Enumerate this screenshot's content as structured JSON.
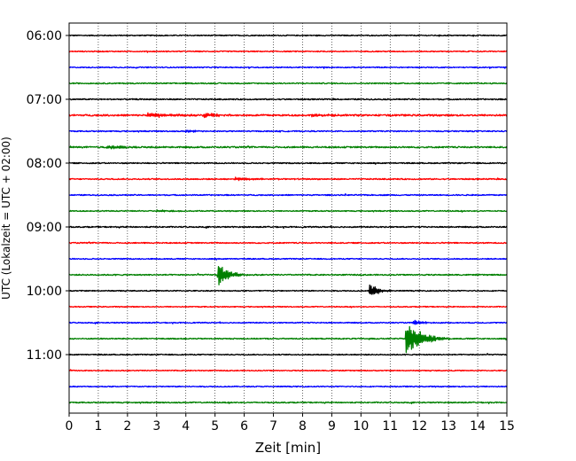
{
  "chart_data": {
    "type": "line",
    "title": "",
    "xlabel": "Zeit  [min]",
    "ylabel": "UTC (Lokalzeit = UTC + 02:00)",
    "xlim": [
      0,
      15
    ],
    "x_ticks": [
      "0",
      "1",
      "2",
      "3",
      "4",
      "5",
      "6",
      "7",
      "8",
      "9",
      "10",
      "11",
      "12",
      "13",
      "14",
      "15"
    ],
    "y_ticks": [
      {
        "label": "06:00",
        "trace": 0
      },
      {
        "label": "07:00",
        "trace": 4
      },
      {
        "label": "08:00",
        "trace": 8
      },
      {
        "label": "09:00",
        "trace": 12
      },
      {
        "label": "10:00",
        "trace": 16
      },
      {
        "label": "11:00",
        "trace": 20
      }
    ],
    "grid": "vertical-dotted",
    "trace_interval_min": 15,
    "color_cycle": [
      "#000000",
      "#ff0000",
      "#0000ff",
      "#008000"
    ],
    "traces": [
      {
        "start": "06:00",
        "color": "#000000",
        "noise": 0.55,
        "events": []
      },
      {
        "start": "06:15",
        "color": "#ff0000",
        "noise": 0.55,
        "events": []
      },
      {
        "start": "06:30",
        "color": "#0000ff",
        "noise": 0.55,
        "events": []
      },
      {
        "start": "06:45",
        "color": "#008000",
        "noise": 0.6,
        "events": []
      },
      {
        "start": "07:00",
        "color": "#000000",
        "noise": 0.65,
        "events": []
      },
      {
        "start": "07:15",
        "color": "#ff0000",
        "noise": 0.9,
        "events": [
          {
            "t": 2.7,
            "amp": 2.5,
            "dur": 0.9
          },
          {
            "t": 4.6,
            "amp": 2.5,
            "dur": 0.5
          },
          {
            "t": 8.3,
            "amp": 1.2,
            "dur": 1.0
          }
        ]
      },
      {
        "start": "07:30",
        "color": "#0000ff",
        "noise": 0.6,
        "events": [
          {
            "t": 4.0,
            "amp": 1.5,
            "dur": 0.3
          }
        ]
      },
      {
        "start": "07:45",
        "color": "#008000",
        "noise": 0.8,
        "events": [
          {
            "t": 1.3,
            "amp": 2.2,
            "dur": 0.7
          }
        ]
      },
      {
        "start": "08:00",
        "color": "#000000",
        "noise": 0.6,
        "events": []
      },
      {
        "start": "08:15",
        "color": "#ff0000",
        "noise": 0.65,
        "events": [
          {
            "t": 5.7,
            "amp": 1.6,
            "dur": 0.9
          }
        ]
      },
      {
        "start": "08:30",
        "color": "#0000ff",
        "noise": 0.6,
        "events": []
      },
      {
        "start": "08:45",
        "color": "#008000",
        "noise": 0.55,
        "events": [
          {
            "t": 3.0,
            "amp": 1.0,
            "dur": 0.8
          }
        ]
      },
      {
        "start": "09:00",
        "color": "#000000",
        "noise": 0.65,
        "events": []
      },
      {
        "start": "09:15",
        "color": "#ff0000",
        "noise": 0.6,
        "events": []
      },
      {
        "start": "09:30",
        "color": "#0000ff",
        "noise": 0.55,
        "events": []
      },
      {
        "start": "09:45",
        "color": "#008000",
        "noise": 0.65,
        "events": [
          {
            "t": 5.1,
            "amp": 14,
            "dur": 0.35
          }
        ]
      },
      {
        "start": "10:00",
        "color": "#000000",
        "noise": 0.55,
        "events": [
          {
            "t": 10.3,
            "amp": 10,
            "dur": 0.25
          }
        ]
      },
      {
        "start": "10:15",
        "color": "#ff0000",
        "noise": 0.5,
        "events": []
      },
      {
        "start": "10:30",
        "color": "#0000ff",
        "noise": 0.55,
        "events": [
          {
            "t": 11.8,
            "amp": 3.0,
            "dur": 0.35
          }
        ]
      },
      {
        "start": "10:45",
        "color": "#008000",
        "noise": 0.6,
        "events": [
          {
            "t": 11.55,
            "amp": 22,
            "dur": 0.5
          }
        ]
      },
      {
        "start": "11:00",
        "color": "#000000",
        "noise": 0.55,
        "events": []
      },
      {
        "start": "11:15",
        "color": "#ff0000",
        "noise": 0.5,
        "events": []
      },
      {
        "start": "11:30",
        "color": "#0000ff",
        "noise": 0.55,
        "events": []
      },
      {
        "start": "11:45",
        "color": "#008000",
        "noise": 0.6,
        "events": []
      }
    ]
  }
}
